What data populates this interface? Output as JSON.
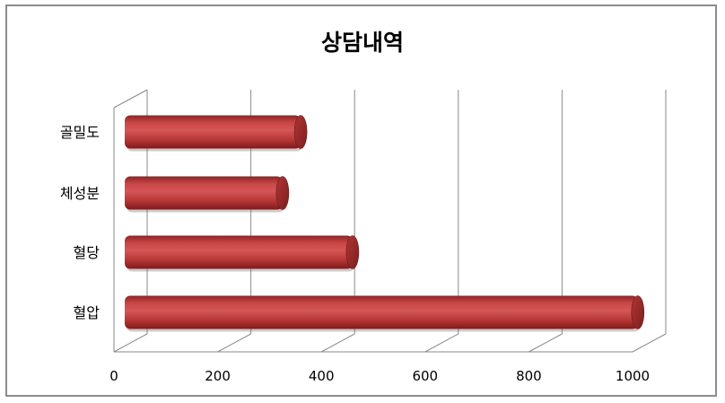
{
  "chart_data": {
    "type": "bar",
    "orientation": "horizontal",
    "style": "3d-cylinder",
    "title": "상담내역",
    "categories": [
      "혈압",
      "혈당",
      "체성분",
      "골밀도"
    ],
    "series": [
      {
        "values": [
          1010,
          460,
          325,
          360
        ]
      }
    ],
    "xlim": [
      0,
      1000
    ],
    "xticks": [
      "0",
      "200",
      "400",
      "600",
      "800",
      "1000"
    ],
    "grid": true,
    "legend": "none",
    "bar_color": "#c0393b"
  }
}
